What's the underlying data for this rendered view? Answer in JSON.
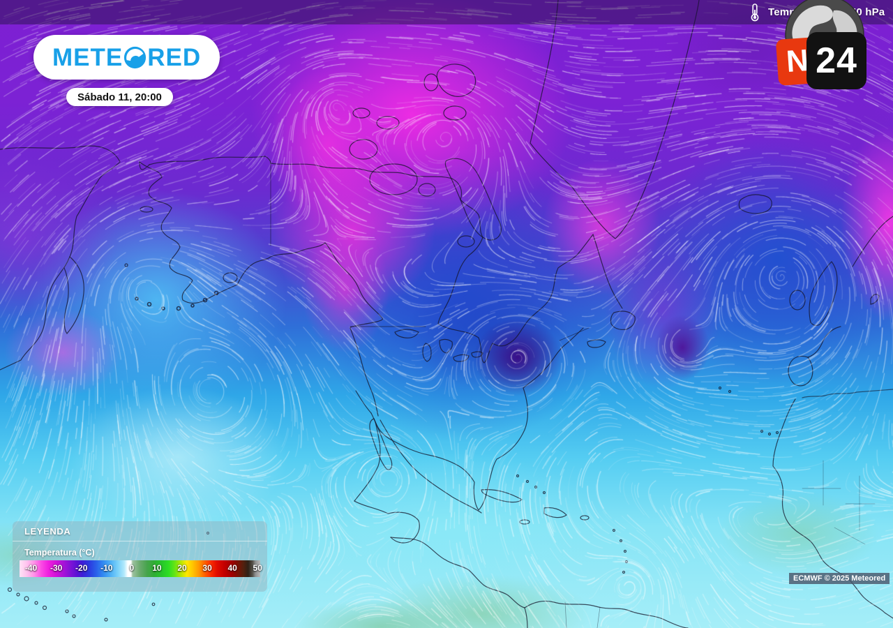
{
  "top_bar": {
    "layer_label": "Temperatura a 850 hPa",
    "thermometer_icon": "thermometer-icon"
  },
  "brand": {
    "logo_left": "METE",
    "logo_right": "RED",
    "logo_full": "METEORED",
    "logo_o_icon": "meteored-o-globe-icon",
    "blue": "#18a0e8",
    "date_label": "Sábado 11, 20:00"
  },
  "n24": {
    "n": "N",
    "number": "24",
    "orange": "#e8380f",
    "black": "#121212",
    "globe_icon": "globe-icon"
  },
  "legend": {
    "title": "LEYENDA",
    "variable_label": "Temperatura (°C)",
    "ticks": [
      "-40",
      "-30",
      "-20",
      "-10",
      "0",
      "10",
      "20",
      "30",
      "40",
      "50"
    ],
    "gradient_stops": [
      {
        "p": 0,
        "c": "#ffe3f6"
      },
      {
        "p": 3,
        "c": "#ffc3ee"
      },
      {
        "p": 6,
        "c": "#ff93e8"
      },
      {
        "p": 9,
        "c": "#fb4ce4"
      },
      {
        "p": 12,
        "c": "#ef1fdf"
      },
      {
        "p": 15,
        "c": "#d313d8"
      },
      {
        "p": 18,
        "c": "#ab12d8"
      },
      {
        "p": 21,
        "c": "#8212d6"
      },
      {
        "p": 24,
        "c": "#5a12d4"
      },
      {
        "p": 26,
        "c": "#3d1dd6"
      },
      {
        "p": 29,
        "c": "#2b3ae0"
      },
      {
        "p": 32,
        "c": "#2a62ea"
      },
      {
        "p": 35,
        "c": "#338df2"
      },
      {
        "p": 38,
        "c": "#4fb2f6"
      },
      {
        "p": 41,
        "c": "#7dd3f9"
      },
      {
        "p": 43.5,
        "c": "#b2e9fc"
      },
      {
        "p": 45,
        "c": "#ffffff"
      },
      {
        "p": 46.3,
        "c": "#ffffff"
      },
      {
        "p": 47,
        "c": "#9dc2a0"
      },
      {
        "p": 50,
        "c": "#6aaa6e"
      },
      {
        "p": 53,
        "c": "#46a44c"
      },
      {
        "p": 56,
        "c": "#2fae33"
      },
      {
        "p": 59,
        "c": "#27c52b"
      },
      {
        "p": 62,
        "c": "#2ede24"
      },
      {
        "p": 64.5,
        "c": "#66e414"
      },
      {
        "p": 67,
        "c": "#b6e600"
      },
      {
        "p": 69.5,
        "c": "#ffe800"
      },
      {
        "p": 72,
        "c": "#ffc400"
      },
      {
        "p": 74.5,
        "c": "#ff9800"
      },
      {
        "p": 77,
        "c": "#ff6000"
      },
      {
        "p": 79.5,
        "c": "#fb2d00"
      },
      {
        "p": 82,
        "c": "#e10d00"
      },
      {
        "p": 85,
        "c": "#c40000"
      },
      {
        "p": 88,
        "c": "#a30000"
      },
      {
        "p": 90.5,
        "c": "#7c0f04"
      },
      {
        "p": 93,
        "c": "#53200e"
      },
      {
        "p": 95,
        "c": "#2e2117"
      },
      {
        "p": 96.8,
        "c": "#555049"
      },
      {
        "p": 98,
        "c": "#8f8f8f"
      },
      {
        "p": 100,
        "c": "#b9b9b9"
      }
    ]
  },
  "attribution": {
    "text": "ECMWF © 2025 Meteored"
  },
  "map": {
    "field_palette": {
      "very_cold_magenta": "#ee2ce2",
      "cold_purple": "#7d1fd2",
      "cool_blue": "#2f6fd8",
      "mild_cyan": "#55cdf2",
      "warm_pale_cyan": "#a5eef8",
      "tropical_green": "#8cc79a"
    },
    "streamline_color": "#ffffff"
  }
}
